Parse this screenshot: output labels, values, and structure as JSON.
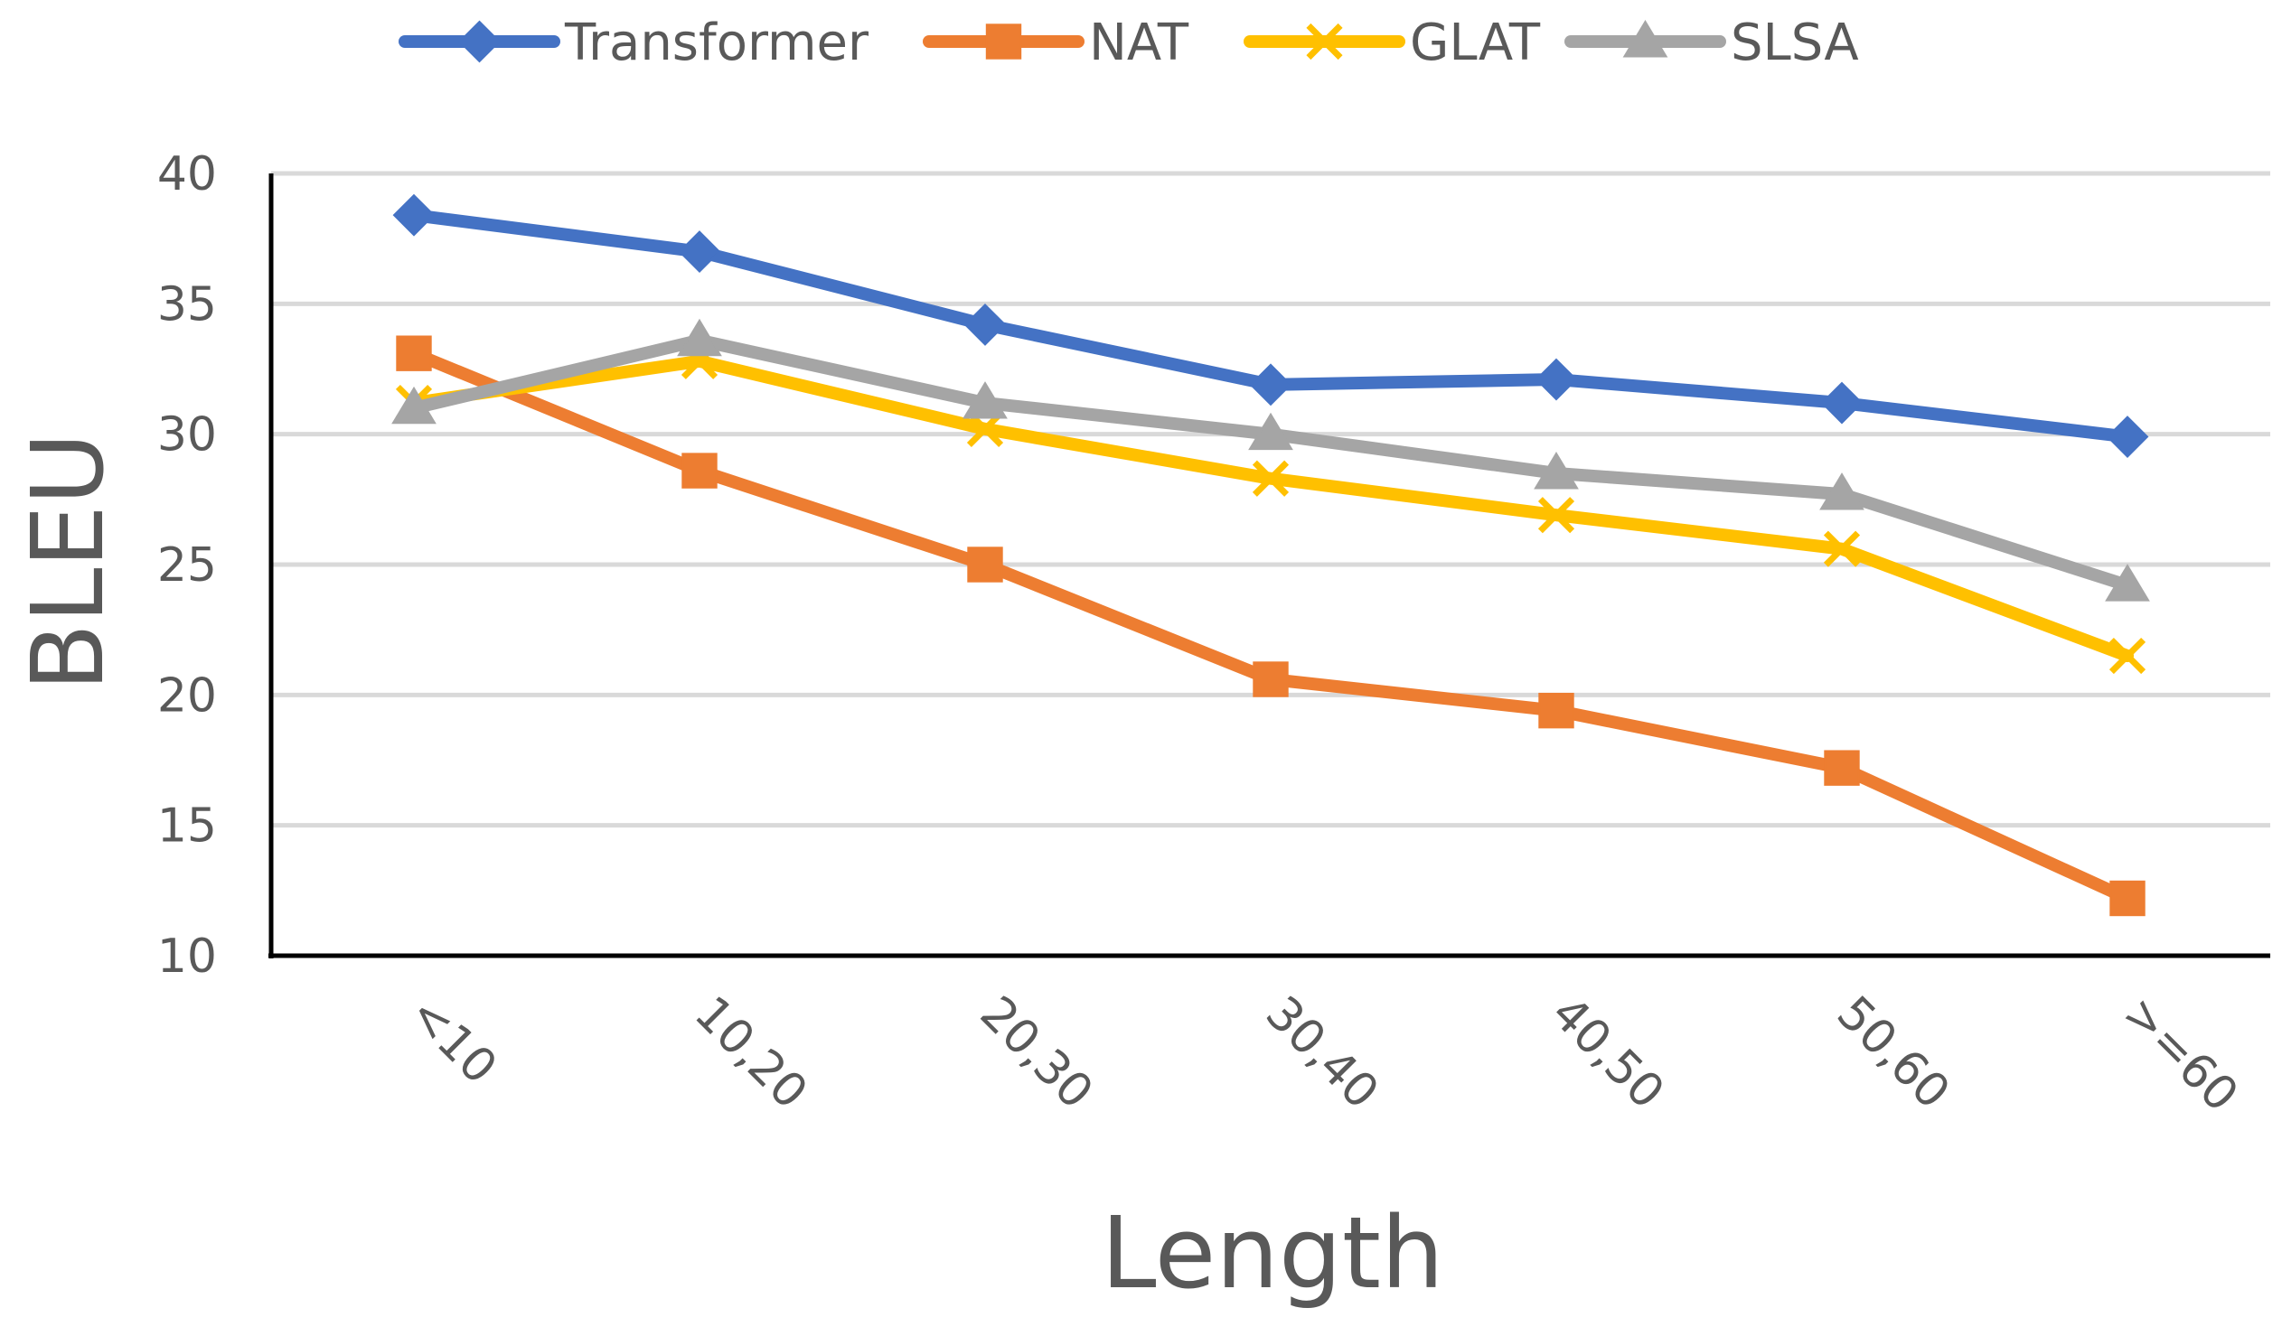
{
  "chart_data": {
    "type": "line",
    "title": "",
    "xlabel": "Length",
    "ylabel": "BLEU",
    "categories": [
      "<10",
      "10,20",
      "20,30",
      "30,40",
      "40,50",
      "50,60",
      ">=60"
    ],
    "ylim": [
      10,
      40
    ],
    "yticks": [
      10,
      15,
      20,
      25,
      30,
      35,
      40
    ],
    "grid": "horizontal",
    "legend_position": "top",
    "series": [
      {
        "name": "Transformer",
        "color": "#4472C4",
        "marker": "diamond",
        "values": [
          38.4,
          37.0,
          34.2,
          31.9,
          32.1,
          31.2,
          29.9
        ]
      },
      {
        "name": "NAT",
        "color": "#ED7D31",
        "marker": "square",
        "values": [
          33.1,
          28.6,
          25.0,
          20.6,
          19.4,
          17.2,
          12.2
        ]
      },
      {
        "name": "GLAT",
        "color": "#FFC000",
        "marker": "x",
        "values": [
          31.2,
          32.8,
          30.2,
          28.3,
          26.9,
          25.6,
          21.5
        ]
      },
      {
        "name": "SLSA",
        "color": "#A5A5A5",
        "marker": "triangle",
        "values": [
          31.0,
          33.6,
          31.2,
          30.0,
          28.5,
          27.7,
          24.2
        ]
      }
    ]
  }
}
